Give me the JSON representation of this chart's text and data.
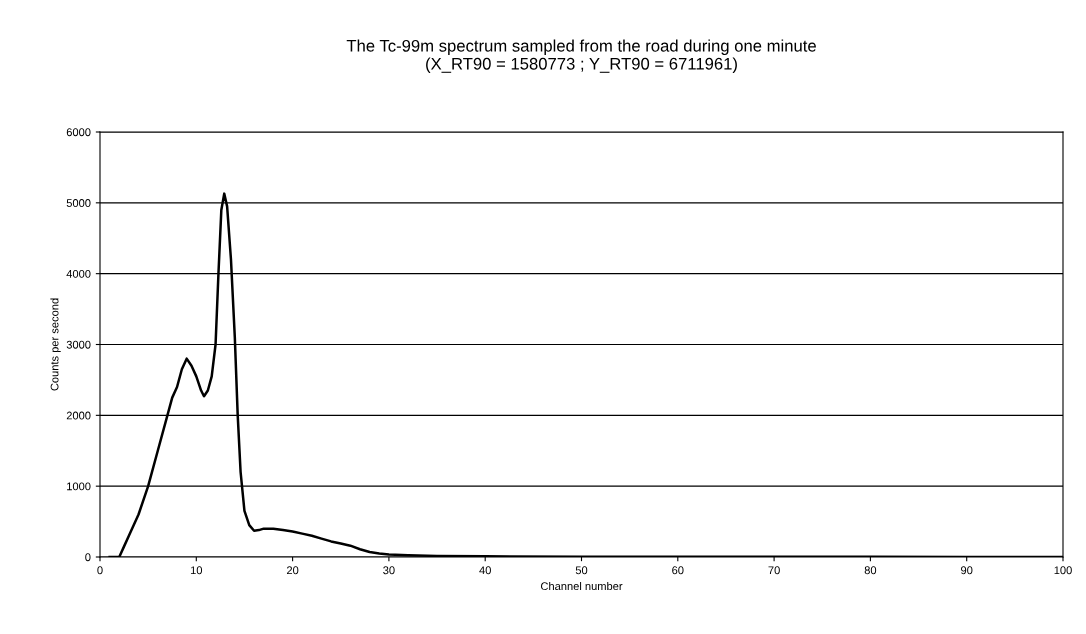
{
  "chart_data": {
    "type": "line",
    "title": "The Tc-99m spectrum sampled from the road during one minute\n(X_RT90 = 1580773 ; Y_RT90 = 6711961)",
    "xlabel": "Channel number",
    "ylabel": "Counts per second",
    "series": [
      {
        "color": "#000000",
        "x": [
          1,
          2,
          2.5,
          3,
          4,
          5,
          6,
          7,
          7.5,
          8,
          8.5,
          9,
          9.5,
          10,
          10.5,
          10.8,
          11.2,
          11.6,
          12,
          12.3,
          12.6,
          12.9,
          13.2,
          13.6,
          14,
          14.3,
          14.6,
          15,
          15.5,
          16,
          16.5,
          17,
          18,
          19,
          20,
          21,
          22,
          23,
          24,
          25,
          26,
          27,
          28,
          29,
          30,
          32,
          35,
          40,
          50,
          60,
          70,
          80,
          90,
          100
        ],
        "values": [
          0,
          0,
          150,
          300,
          600,
          1000,
          1500,
          2000,
          2250,
          2400,
          2650,
          2800,
          2700,
          2550,
          2350,
          2270,
          2350,
          2550,
          3000,
          4000,
          4900,
          5130,
          4950,
          4200,
          3100,
          2000,
          1200,
          650,
          450,
          370,
          380,
          400,
          400,
          380,
          360,
          330,
          300,
          260,
          220,
          190,
          160,
          110,
          70,
          50,
          35,
          25,
          15,
          10,
          5,
          5,
          3,
          2,
          1,
          0
        ]
      }
    ],
    "xlim": [
      0,
      100
    ],
    "xticks": [
      0,
      10,
      20,
      30,
      40,
      50,
      60,
      70,
      80,
      90,
      100
    ],
    "ylim": [
      0,
      6000
    ],
    "yticks": [
      0,
      1000,
      2000,
      3000,
      4000,
      5000,
      6000
    ],
    "grid": "y",
    "legend": false,
    "marker": "none",
    "line_style": "solid"
  }
}
